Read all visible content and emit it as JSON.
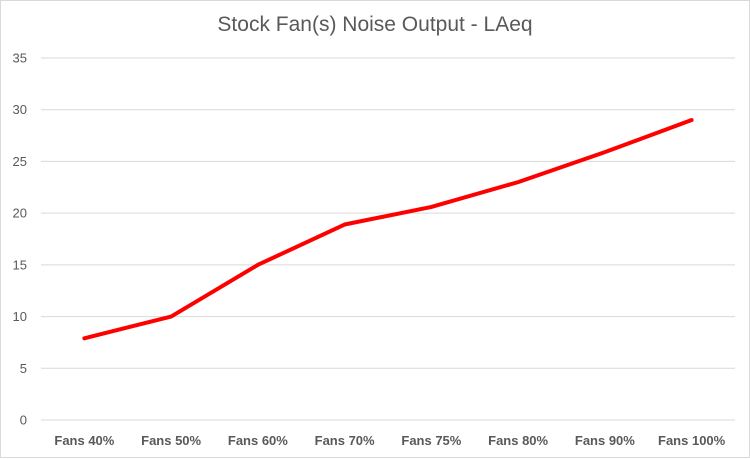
{
  "chart_data": {
    "type": "line",
    "title": "Stock Fan(s) Noise Output - LAeq",
    "xlabel": "",
    "ylabel": "",
    "categories": [
      "Fans 40%",
      "Fans 50%",
      "Fans 60%",
      "Fans 70%",
      "Fans 75%",
      "Fans 80%",
      "Fans 90%",
      "Fans 100%"
    ],
    "series": [
      {
        "values": [
          7.9,
          10.0,
          15.0,
          18.9,
          20.6,
          23.0,
          25.9,
          29.0
        ],
        "color": "#ff0000"
      }
    ],
    "ylim": [
      0,
      35
    ],
    "yticks": [
      0,
      5,
      10,
      15,
      20,
      25,
      30,
      35
    ],
    "grid": true,
    "legend": "none"
  }
}
